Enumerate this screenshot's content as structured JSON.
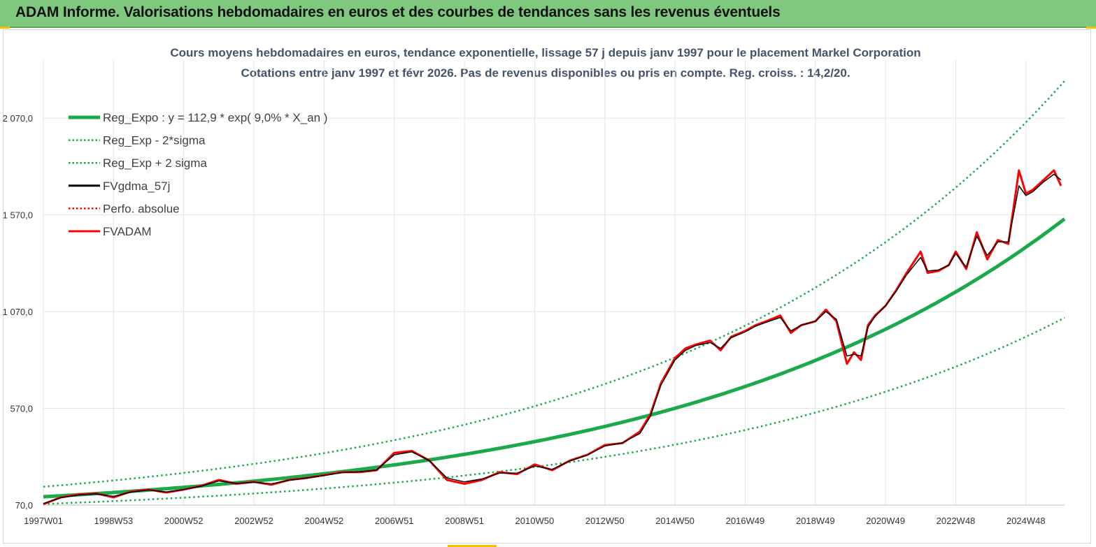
{
  "header": {
    "title": "ADAM Informe. Valorisations hebdomadaires en euros et des courbes de tendances sans les revenus éventuels"
  },
  "colors": {
    "banner": "#7fc97f",
    "trend": "#1aaa4a",
    "smooth": "#000000",
    "price": "#ff0000",
    "title": "#44546a"
  },
  "chart_data": {
    "type": "line",
    "title": "Cours moyens hebdomadaires en euros, tendance exponentielle, lissage 57 j depuis janv 1997 pour le  placement Markel Corporation",
    "subtitle": "Cotations entre janv 1997 et févr 2026. Pas de revenus disponibles ou pris en  compte. Reg. croiss. : 14,2/20.",
    "xlabel": "",
    "ylabel": "",
    "x_range": [
      1997.0,
      2026.1
    ],
    "ylim": [
      70,
      2370
    ],
    "yticks": [
      70,
      570,
      1070,
      1570,
      2070
    ],
    "ytick_labels": [
      "70,0",
      "570,0",
      "1 070,0",
      "1 570,0",
      "2 070,0"
    ],
    "xticks": [
      1997.0,
      1999.0,
      2001.0,
      2003.0,
      2005.0,
      2007.0,
      2009.0,
      2011.0,
      2013.0,
      2015.0,
      2017.0,
      2019.0,
      2021.0,
      2023.0,
      2025.0
    ],
    "xtick_labels": [
      "1997W01",
      "1998W53",
      "2000W52",
      "2002W52",
      "2004W52",
      "2006W51",
      "2008W51",
      "2010W50",
      "2012W50",
      "2014W50",
      "2016W49",
      "2018W49",
      "2020W49",
      "2022W48",
      "2024W48"
    ],
    "grid": true,
    "legend_position": "top-left",
    "legend": [
      {
        "label": "Reg_Expo : y = 112,9 * exp( 9,0% *  X_an )",
        "style": "solid-thick",
        "color": "#1aaa4a"
      },
      {
        "label": "Reg_Exp - 2*sigma",
        "style": "dotted",
        "color": "#1aaa4a"
      },
      {
        "label": "Reg_Exp + 2 sigma",
        "style": "dotted",
        "color": "#1aaa4a"
      },
      {
        "label": "FVgdma_57j",
        "style": "solid",
        "color": "#000000"
      },
      {
        "label": "Perfo. absolue",
        "style": "dotted",
        "color": "#ff0000"
      },
      {
        "label": "FVADAM",
        "style": "solid",
        "color": "#ff0000"
      }
    ],
    "regression": {
      "a": 112.9,
      "rate": 0.09,
      "sigma_factor_low": 0.67,
      "sigma_factor_high": 1.46
    },
    "series": [
      {
        "name": "FVADAM",
        "x": [
          1997.0,
          1997.5,
          1998.0,
          1998.5,
          1999.0,
          1999.5,
          2000.0,
          2000.5,
          2001.0,
          2001.5,
          2002.0,
          2002.5,
          2003.0,
          2003.5,
          2004.0,
          2004.5,
          2005.0,
          2005.5,
          2006.0,
          2006.5,
          2007.0,
          2007.5,
          2008.0,
          2008.5,
          2009.0,
          2009.5,
          2010.0,
          2010.5,
          2011.0,
          2011.5,
          2012.0,
          2012.5,
          2013.0,
          2013.5,
          2014.0,
          2014.3,
          2014.6,
          2015.0,
          2015.3,
          2015.6,
          2016.0,
          2016.3,
          2016.6,
          2017.0,
          2017.3,
          2017.6,
          2018.0,
          2018.3,
          2018.6,
          2019.0,
          2019.3,
          2019.6,
          2019.9,
          2020.1,
          2020.3,
          2020.5,
          2020.7,
          2021.0,
          2021.3,
          2021.6,
          2022.0,
          2022.2,
          2022.5,
          2022.8,
          2023.0,
          2023.3,
          2023.6,
          2023.9,
          2024.2,
          2024.5,
          2024.8,
          2025.0,
          2025.2,
          2025.5,
          2025.8,
          2026.0
        ],
        "values": [
          75,
          110,
          125,
          130,
          110,
          140,
          150,
          135,
          150,
          170,
          200,
          180,
          190,
          175,
          200,
          210,
          225,
          240,
          240,
          250,
          340,
          350,
          300,
          200,
          180,
          200,
          240,
          230,
          280,
          250,
          300,
          330,
          380,
          390,
          450,
          540,
          700,
          830,
          880,
          900,
          920,
          870,
          940,
          970,
          1000,
          1020,
          1050,
          960,
          1000,
          1020,
          1080,
          1020,
          800,
          860,
          820,
          1000,
          1050,
          1100,
          1180,
          1270,
          1380,
          1270,
          1280,
          1310,
          1380,
          1290,
          1480,
          1340,
          1440,
          1420,
          1800,
          1680,
          1700,
          1750,
          1800,
          1720
        ]
      },
      {
        "name": "FVgdma_57j",
        "x": [
          1997.0,
          1997.5,
          1998.0,
          1998.5,
          1999.0,
          1999.5,
          2000.0,
          2000.5,
          2001.0,
          2001.5,
          2002.0,
          2002.5,
          2003.0,
          2003.5,
          2004.0,
          2004.5,
          2005.0,
          2005.5,
          2006.0,
          2006.5,
          2007.0,
          2007.5,
          2008.0,
          2008.5,
          2009.0,
          2009.5,
          2010.0,
          2010.5,
          2011.0,
          2011.5,
          2012.0,
          2012.5,
          2013.0,
          2013.5,
          2014.0,
          2014.3,
          2014.6,
          2015.0,
          2015.3,
          2015.6,
          2016.0,
          2016.3,
          2016.6,
          2017.0,
          2017.3,
          2017.6,
          2018.0,
          2018.3,
          2018.6,
          2019.0,
          2019.3,
          2019.6,
          2019.9,
          2020.1,
          2020.3,
          2020.5,
          2020.7,
          2021.0,
          2021.3,
          2021.6,
          2022.0,
          2022.2,
          2022.5,
          2022.8,
          2023.0,
          2023.3,
          2023.6,
          2023.9,
          2024.2,
          2024.5,
          2024.8,
          2025.0,
          2025.2,
          2025.5,
          2025.8,
          2026.0
        ],
        "values": [
          78,
          108,
          122,
          128,
          115,
          137,
          148,
          138,
          150,
          168,
          195,
          182,
          188,
          180,
          198,
          210,
          223,
          238,
          242,
          252,
          330,
          345,
          300,
          210,
          190,
          205,
          235,
          235,
          272,
          255,
          298,
          328,
          375,
          392,
          440,
          530,
          690,
          820,
          870,
          895,
          910,
          880,
          935,
          965,
          995,
          1015,
          1040,
          970,
          1000,
          1020,
          1070,
          1030,
          840,
          850,
          840,
          990,
          1045,
          1100,
          1175,
          1260,
          1350,
          1280,
          1285,
          1310,
          1370,
          1300,
          1460,
          1360,
          1430,
          1430,
          1720,
          1670,
          1690,
          1740,
          1780,
          1750
        ]
      }
    ]
  }
}
